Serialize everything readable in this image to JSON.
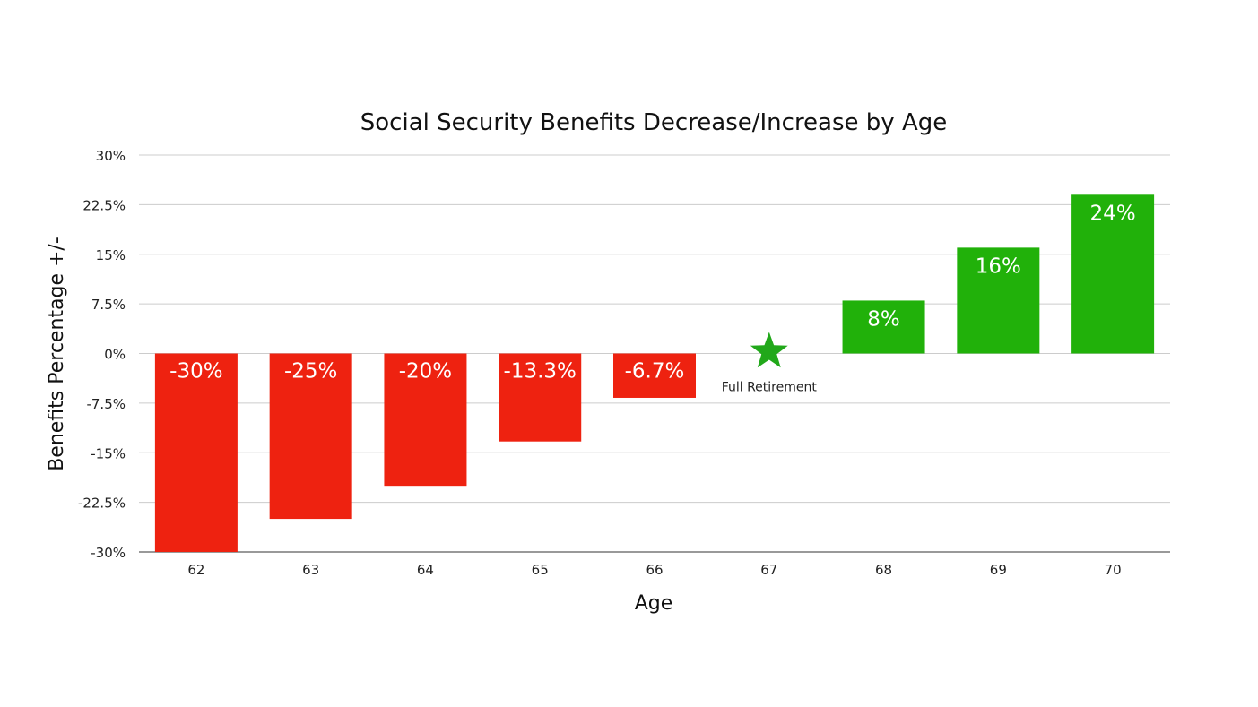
{
  "chart_data": {
    "type": "bar",
    "title": "Social Security Benefits Decrease/Increase by Age",
    "xlabel": "Age",
    "ylabel": "Benefits Percentage +/-",
    "categories": [
      "62",
      "63",
      "64",
      "65",
      "66",
      "67",
      "68",
      "69",
      "70"
    ],
    "values": [
      -30,
      -25,
      -20,
      -13.3,
      -6.7,
      0,
      8,
      16,
      24
    ],
    "data_labels": [
      "-30%",
      "-25%",
      "-20%",
      "-13.3%",
      "-6.7%",
      "",
      "8%",
      "16%",
      "24%"
    ],
    "ylim": [
      -30,
      30
    ],
    "yticks": [
      30,
      22.5,
      15,
      7.5,
      0,
      -7.5,
      -15,
      -22.5,
      -30
    ],
    "ytick_labels": [
      "30%",
      "22.5%",
      "15%",
      "7.5%",
      "0%",
      "-7.5%",
      "-15%",
      "-22.5%",
      "-30%"
    ],
    "grid": true,
    "annotation": {
      "category": "67",
      "marker": "star-icon",
      "label": "Full Retirement"
    },
    "colors": {
      "negative": "#EE2210",
      "positive": "#21B10A",
      "star": "#21A81A",
      "grid": "#CCCCCC",
      "axis": "#333333"
    }
  }
}
